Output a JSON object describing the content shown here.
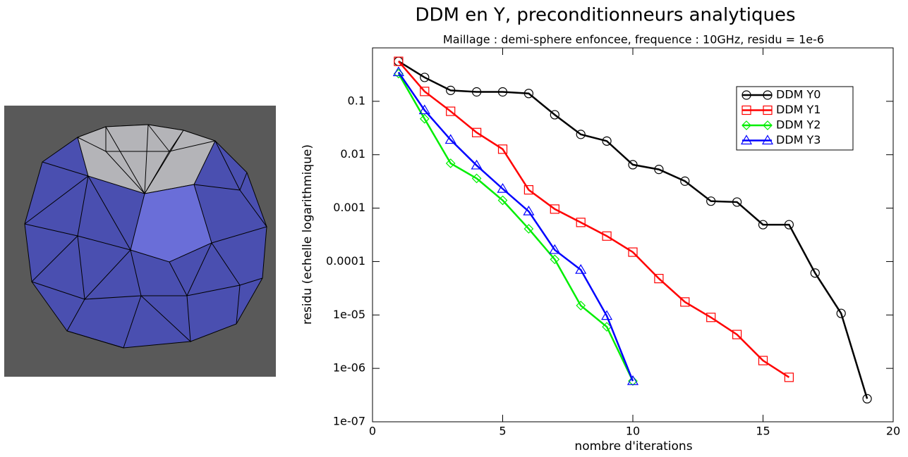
{
  "chart_data": {
    "type": "line",
    "title": "DDM en Y, preconditionneurs analytiques",
    "subtitle": "Maillage : demi-sphere enfoncee, frequence : 10GHz, residu = 1e-6",
    "x_label": "nombre d'iterations",
    "y_label": "residu (echelle logarithmique)",
    "log_y": true,
    "xlim": [
      0,
      20
    ],
    "xticks": [
      0,
      5,
      10,
      15,
      20
    ],
    "ylim": [
      1e-07,
      1
    ],
    "yticks": [
      0.1,
      0.01,
      0.001,
      0.0001,
      {
        "value": 1e-05,
        "label": "1e-05"
      },
      {
        "value": 1e-06,
        "label": "1e-06"
      },
      {
        "value": 1e-07,
        "label": "1e-07"
      }
    ],
    "legend": "upper right",
    "series": [
      {
        "name": "DDM Y0",
        "color": "#000000",
        "marker": "circle",
        "x": [
          1,
          2,
          3,
          4,
          5,
          6,
          7,
          8,
          9,
          10,
          11,
          12,
          13,
          14,
          15,
          16,
          17,
          18,
          19
        ],
        "values": [
          0.56,
          0.28,
          0.16,
          0.15,
          0.15,
          0.14,
          0.056,
          0.024,
          0.018,
          0.0065,
          0.0053,
          0.0032,
          0.00135,
          0.0013,
          0.00049,
          0.00049,
          6.1e-05,
          1.07e-05,
          2.7e-07
        ]
      },
      {
        "name": "DDM Y1",
        "color": "#ff0000",
        "marker": "square",
        "x": [
          1,
          2,
          3,
          4,
          5,
          6,
          7,
          8,
          9,
          10,
          11,
          12,
          13,
          14,
          15,
          16
        ],
        "values": [
          0.56,
          0.153,
          0.065,
          0.026,
          0.0127,
          0.0022,
          0.00096,
          0.00054,
          0.0003,
          0.00015,
          4.8e-05,
          1.75e-05,
          9e-06,
          4.3e-06,
          1.4e-06,
          6.8e-07
        ]
      },
      {
        "name": "DDM Y2",
        "color": "#00ee00",
        "marker": "diamond",
        "x": [
          1,
          2,
          3,
          4,
          5,
          6,
          7,
          8,
          9,
          10
        ],
        "values": [
          0.33,
          0.047,
          0.0069,
          0.0036,
          0.0014,
          0.00041,
          0.00011,
          1.5e-05,
          6e-06,
          5.8e-07
        ]
      },
      {
        "name": "DDM Y3",
        "color": "#0000ff",
        "marker": "triangle",
        "x": [
          1,
          2,
          3,
          4,
          5,
          6,
          7,
          8,
          9,
          10
        ],
        "values": [
          0.35,
          0.068,
          0.019,
          0.0063,
          0.0023,
          0.00087,
          0.000165,
          7e-05,
          9.6e-06,
          5.8e-07
        ]
      }
    ]
  }
}
